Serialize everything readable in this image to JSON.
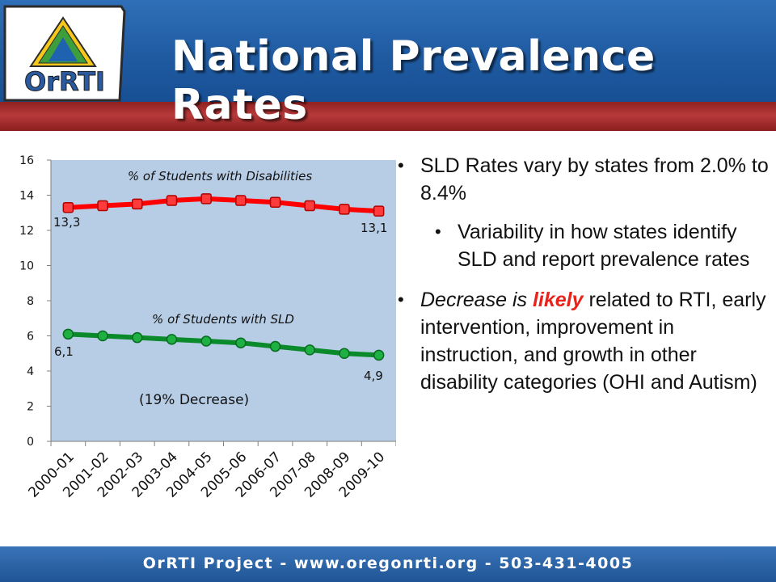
{
  "title": "National Prevalence Rates",
  "logo_text": "OrRTI",
  "footer": "OrRTI Project - www.oregonrti.org - 503-431-4005",
  "bullets": {
    "b1": "SLD Rates vary by states from 2.0% to 8.4%",
    "b2": "Variability in how states identify SLD and report prevalence rates",
    "b3_part1": "Decrease is ",
    "b3_highlight": "likely",
    "b3_part2": " related to RTI, early intervention, improvement in instruction, and growth in other disability categories (OHI and Autism)"
  },
  "colors": {
    "disabilities_series": "#ff0000",
    "sld_series": "#0a8a2a",
    "plot_background": "#b7cde6",
    "highlight": "#e8231b"
  },
  "chart_data": {
    "type": "line",
    "categories": [
      "2000-01",
      "2001-02",
      "2002-03",
      "2003-04",
      "2004-05",
      "2005-06",
      "2006-07",
      "2007-08",
      "2008-09",
      "2009-10"
    ],
    "series": [
      {
        "name": "% of Students with Disabilities",
        "values": [
          13.3,
          13.4,
          13.5,
          13.7,
          13.8,
          13.7,
          13.6,
          13.4,
          13.2,
          13.1
        ]
      },
      {
        "name": "% of Students with SLD",
        "values": [
          6.1,
          6.0,
          5.9,
          5.8,
          5.7,
          5.6,
          5.4,
          5.2,
          5.0,
          4.9
        ]
      }
    ],
    "ylim": [
      0,
      16
    ],
    "yticks": [
      0,
      2,
      4,
      6,
      8,
      10,
      12,
      14,
      16
    ],
    "annotations": {
      "dis_start": "13,3",
      "dis_end": "13,1",
      "sld_start": "6,1",
      "sld_end": "4,9",
      "decrease": "(19% Decrease)"
    },
    "grid": false
  }
}
